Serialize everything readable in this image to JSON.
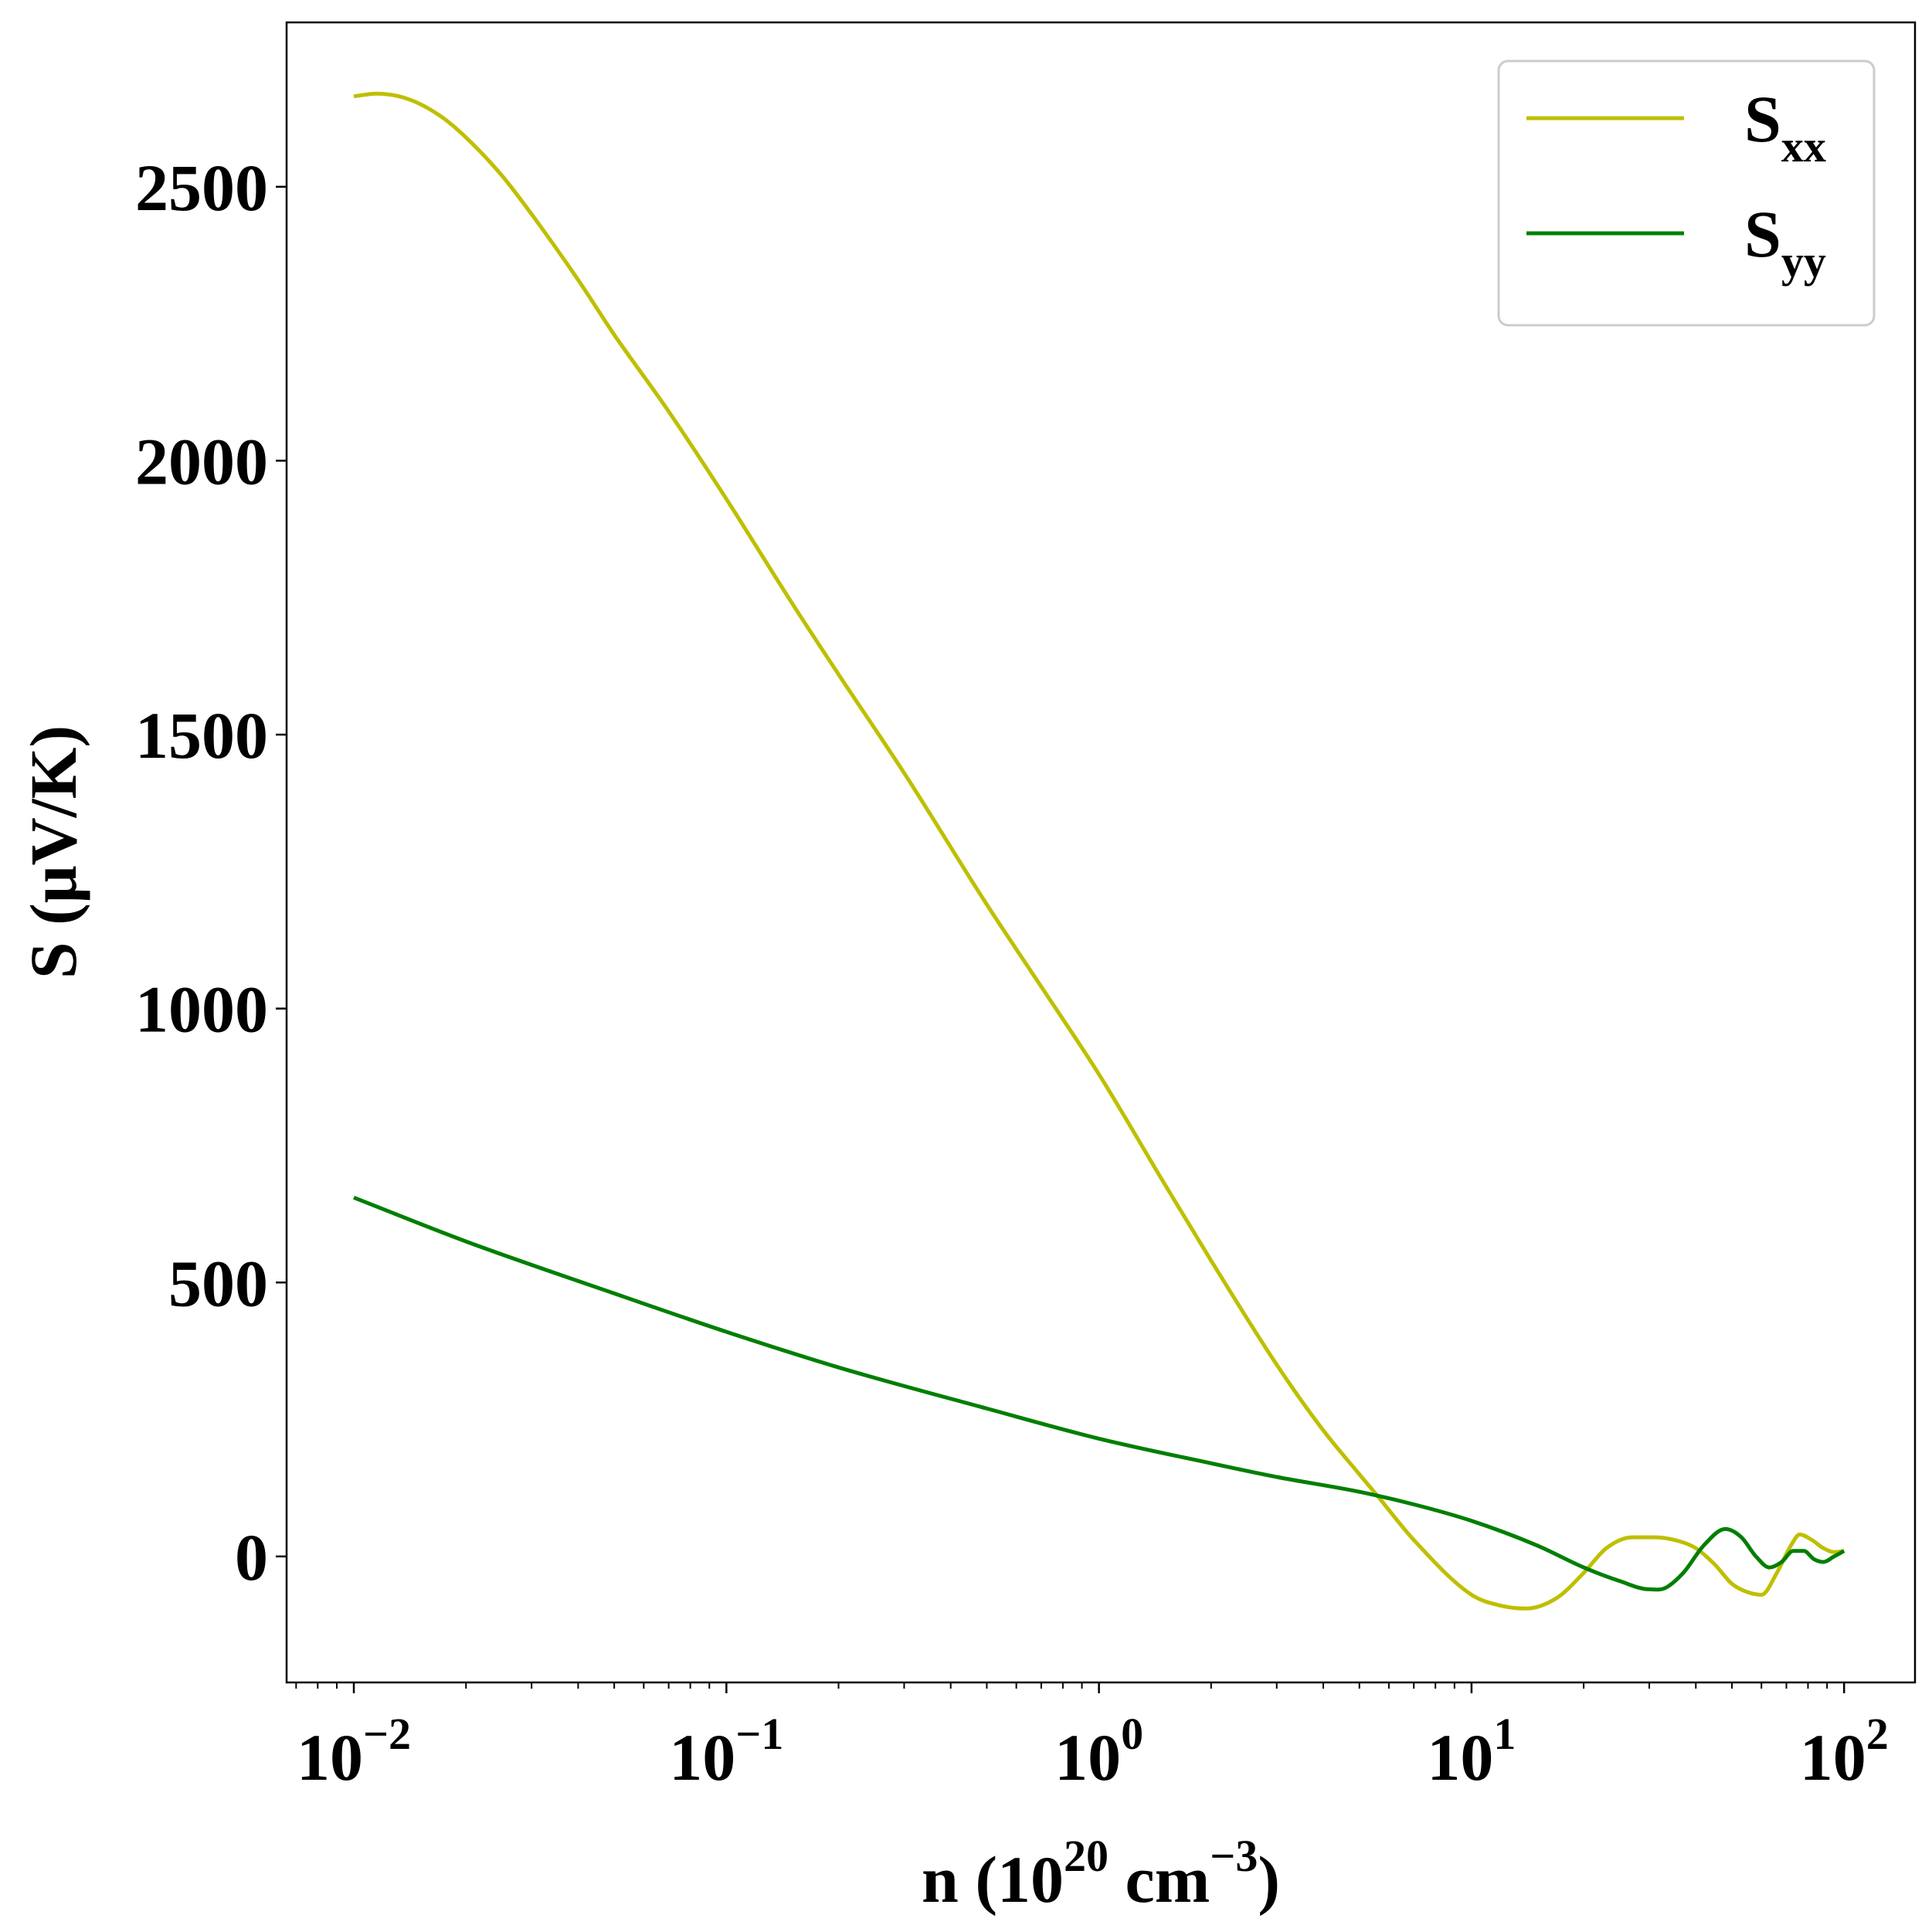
{
  "chart_data": {
    "type": "line",
    "title": "",
    "xscale": "log",
    "xlabel": {
      "base": "n (10",
      "sup1": "20",
      "mid": " cm",
      "sup2": "−3",
      "end": ")"
    },
    "ylabel": "S (μV/K)",
    "xlim": [
      0.0066,
      155
    ],
    "ylim": [
      -230,
      2800
    ],
    "grid": false,
    "legend_position": "top-right",
    "x_ticks": [
      {
        "value": 0.01,
        "base": "10",
        "exp": "−2"
      },
      {
        "value": 0.1,
        "base": "10",
        "exp": "−1"
      },
      {
        "value": 1,
        "base": "10",
        "exp": "0"
      },
      {
        "value": 10,
        "base": "10",
        "exp": "1"
      },
      {
        "value": 100,
        "base": "10",
        "exp": "2"
      }
    ],
    "y_ticks": [
      {
        "value": 0,
        "label": "0"
      },
      {
        "value": 500,
        "label": "500"
      },
      {
        "value": 1000,
        "label": "1000"
      },
      {
        "value": 1500,
        "label": "1500"
      },
      {
        "value": 2000,
        "label": "2000"
      },
      {
        "value": 2500,
        "label": "2500"
      }
    ],
    "series": [
      {
        "name": "S",
        "subscript": "xx",
        "color": "#bfbf00",
        "x": [
          0.01,
          0.0115,
          0.014,
          0.017,
          0.02,
          0.025,
          0.03,
          0.04,
          0.05,
          0.07,
          0.1,
          0.15,
          0.2,
          0.3,
          0.5,
          0.7,
          1,
          1.5,
          2,
          3,
          4,
          5,
          5.6,
          7,
          10,
          12,
          14,
          17,
          20,
          23,
          27,
          31,
          36,
          40,
          45,
          50,
          55,
          60,
          66,
          72,
          76,
          82,
          88,
          94,
          100
        ],
        "y": [
          2665,
          2670,
          2660,
          2630,
          2590,
          2520,
          2450,
          2330,
          2230,
          2090,
          1930,
          1740,
          1610,
          1430,
          1190,
          1040,
          880,
          680,
          540,
          350,
          230,
          150,
          110,
          30,
          -70,
          -90,
          -95,
          -75,
          -30,
          15,
          35,
          35,
          28,
          15,
          -15,
          -50,
          -65,
          -70,
          -30,
          20,
          40,
          30,
          15,
          8,
          10
        ]
      },
      {
        "name": "S",
        "subscript": "yy",
        "color": "#007f00",
        "x": [
          0.01,
          0.02,
          0.05,
          0.1,
          0.2,
          0.5,
          1,
          2,
          3,
          5,
          7,
          10,
          15,
          20,
          25,
          30,
          33,
          37,
          42,
          48,
          53,
          58,
          63,
          68,
          73,
          78,
          83,
          88,
          94,
          100
        ],
        "y": [
          655,
          575,
          480,
          410,
          345,
          270,
          215,
          170,
          145,
          118,
          95,
          65,
          20,
          -20,
          -45,
          -60,
          -58,
          -30,
          20,
          50,
          35,
          0,
          -20,
          -10,
          10,
          10,
          -5,
          -10,
          0,
          10
        ]
      }
    ]
  }
}
